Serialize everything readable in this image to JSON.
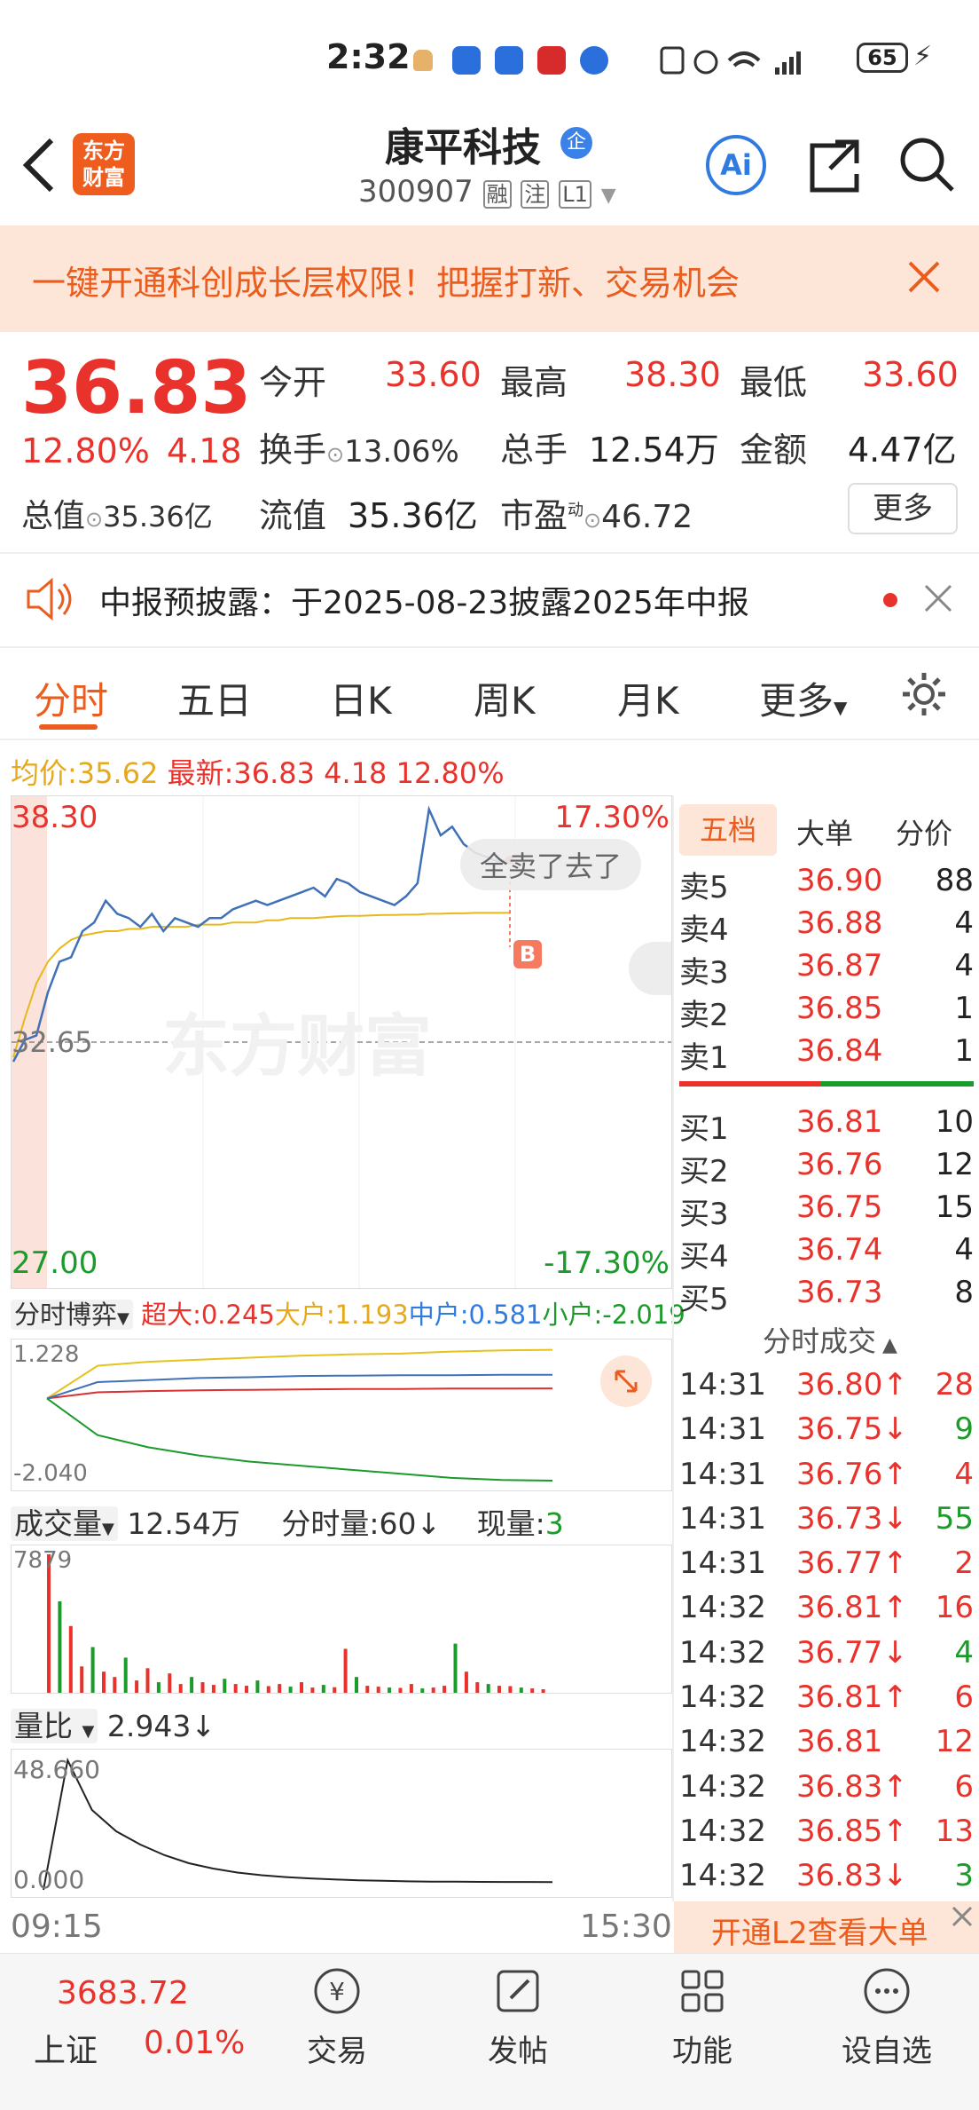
{
  "status_bar": {
    "time": "2:32",
    "battery": "65"
  },
  "header": {
    "logo_line1": "东方",
    "logo_line2": "财富",
    "stock_name": "康平科技",
    "name_badge": "企",
    "code": "300907",
    "tag1": "融",
    "tag2": "注",
    "tag3": "L1",
    "ai_label": "Ai"
  },
  "banner": {
    "text": "一键开通科创成长层权限！把握打新、交易机会"
  },
  "quote": {
    "price": "36.83",
    "change_pct": "12.80%",
    "change": "4.18",
    "open_label": "今开",
    "open": "33.60",
    "high_label": "最高",
    "high": "38.30",
    "low_label": "最低",
    "low": "33.60",
    "turnover_label": "换手",
    "turnover": "13.06%",
    "volume_label": "总手",
    "volume": "12.54万",
    "amount_label": "金额",
    "amount": "4.47亿",
    "mktcap_label": "总值",
    "mktcap": "35.36亿",
    "float_label": "流值",
    "float": "35.36亿",
    "pe_label": "市盈",
    "pe_sup": "动",
    "pe": "46.72",
    "more_button": "更多"
  },
  "notice": {
    "text": "中报预披露：于2025-08-23披露2025年中报"
  },
  "tabs": {
    "t1": "分时",
    "t2": "五日",
    "t3": "日K",
    "t4": "周K",
    "t5": "月K",
    "t6": "更多"
  },
  "chart_header": {
    "avg_label": "均价:",
    "avg": "35.62",
    "latest_label": "最新:",
    "latest": "36.83",
    "change": "4.18",
    "pct": "12.80%"
  },
  "chart_data": [
    {
      "type": "line",
      "name": "intraday",
      "ylim": [
        27.0,
        38.3
      ],
      "y_top_label": "38.30",
      "y_mid_label": "32.65",
      "y_bottom_label": "27.00",
      "pct_top": "17.30%",
      "pct_bottom": "-17.30%",
      "x_start": "09:15",
      "x_end": "15:30",
      "price": [
        32.2,
        32.7,
        32.8,
        33.8,
        34.5,
        34.6,
        35.2,
        35.4,
        35.9,
        35.6,
        35.5,
        35.3,
        35.6,
        35.2,
        35.5,
        35.4,
        35.3,
        35.5,
        35.5,
        35.7,
        35.8,
        35.9,
        35.8,
        35.9,
        36.0,
        36.1,
        36.2,
        36.0,
        36.4,
        36.3,
        36.1,
        36.0,
        35.9,
        35.8,
        36.0,
        36.3,
        38.0,
        37.4,
        37.6,
        37.2,
        37.0,
        36.9,
        36.8,
        36.83
      ],
      "avg": [
        32.3,
        33.2,
        34.0,
        34.5,
        34.8,
        35.0,
        35.1,
        35.15,
        35.2,
        35.2,
        35.25,
        35.25,
        35.3,
        35.3,
        35.3,
        35.3,
        35.35,
        35.35,
        35.35,
        35.4,
        35.4,
        35.4,
        35.45,
        35.45,
        35.5,
        35.5,
        35.5,
        35.52,
        35.54,
        35.55,
        35.55,
        35.56,
        35.57,
        35.57,
        35.58,
        35.58,
        35.6,
        35.6,
        35.61,
        35.61,
        35.62,
        35.62,
        35.62,
        35.62
      ],
      "annotation": "全卖了去了",
      "marker": "B",
      "watermark": "东方财富"
    },
    {
      "type": "line",
      "name": "fund-flow",
      "ymax_label": "1.228",
      "ymin_label": "-2.040",
      "series": [
        {
          "name": "超大",
          "value": "0.245",
          "values": [
            0,
            0.15,
            0.18,
            0.2,
            0.21,
            0.22,
            0.23,
            0.23,
            0.24,
            0.24,
            0.245
          ]
        },
        {
          "name": "大户",
          "value": "1.193",
          "values": [
            0,
            0.8,
            0.9,
            0.95,
            1.0,
            1.05,
            1.08,
            1.1,
            1.15,
            1.18,
            1.193
          ]
        },
        {
          "name": "中户",
          "value": "0.581",
          "values": [
            0,
            0.4,
            0.45,
            0.5,
            0.52,
            0.55,
            0.56,
            0.57,
            0.57,
            0.58,
            0.581
          ]
        },
        {
          "name": "小户",
          "value": "-2.019",
          "values": [
            0,
            -0.9,
            -1.2,
            -1.4,
            -1.55,
            -1.65,
            -1.75,
            -1.85,
            -1.95,
            -2.0,
            -2.019
          ]
        }
      ]
    },
    {
      "type": "bar",
      "name": "volume",
      "ymax_label": "7879",
      "values": [
        7879,
        5200,
        3800,
        1500,
        2600,
        1200,
        900,
        2000,
        700,
        1400,
        600,
        1100,
        500,
        900,
        600,
        450,
        800,
        500,
        400,
        700,
        380,
        500,
        350,
        600,
        300,
        450,
        320,
        2500,
        900,
        400,
        350,
        300,
        280,
        500,
        250,
        300,
        400,
        2800,
        1200,
        600,
        500,
        400,
        380,
        300,
        250,
        200
      ]
    },
    {
      "type": "line",
      "name": "volume-ratio",
      "ymax_label": "48.660",
      "ymin_label": "0.000",
      "values": [
        0,
        48.66,
        30,
        22,
        17,
        13,
        10,
        8,
        6.5,
        5.5,
        4.8,
        4.3,
        3.9,
        3.6,
        3.4,
        3.2,
        3.1,
        3.05,
        3.0,
        2.98,
        2.96,
        2.943
      ]
    }
  ],
  "flow_bar": {
    "label": "分时博弈",
    "chao_label": "超大:",
    "chao": "0.245",
    "da_label": "大户:",
    "da": "1.193",
    "zhong_label": "中户:",
    "zhong": "0.581",
    "xiao_label": "小户:",
    "xiao": "-2.019"
  },
  "vol_bar": {
    "label": "成交量",
    "total": "12.54万",
    "minute_label": "分时量:60↓",
    "now_label": "现量:",
    "now": "3"
  },
  "ratio_bar": {
    "label": "量比",
    "value": "2.943↓"
  },
  "order_tabs": {
    "t1": "五档",
    "t2": "大单",
    "t3": "分价"
  },
  "asks": [
    {
      "label": "卖5",
      "price": "36.90",
      "qty": "88"
    },
    {
      "label": "卖4",
      "price": "36.88",
      "qty": "4"
    },
    {
      "label": "卖3",
      "price": "36.87",
      "qty": "4"
    },
    {
      "label": "卖2",
      "price": "36.85",
      "qty": "1"
    },
    {
      "label": "卖1",
      "price": "36.84",
      "qty": "1"
    }
  ],
  "bids": [
    {
      "label": "买1",
      "price": "36.81",
      "qty": "10"
    },
    {
      "label": "买2",
      "price": "36.76",
      "qty": "12"
    },
    {
      "label": "买3",
      "price": "36.75",
      "qty": "15"
    },
    {
      "label": "买4",
      "price": "36.74",
      "qty": "4"
    },
    {
      "label": "买5",
      "price": "36.73",
      "qty": "8"
    }
  ],
  "ticks_header": "分时成交",
  "ticks": [
    {
      "time": "14:31",
      "price": "36.80↑",
      "qty": "28"
    },
    {
      "time": "14:31",
      "price": "36.75↓",
      "qty": "9"
    },
    {
      "time": "14:31",
      "price": "36.76↑",
      "qty": "4"
    },
    {
      "time": "14:31",
      "price": "36.73↓",
      "qty": "55"
    },
    {
      "time": "14:31",
      "price": "36.77↑",
      "qty": "2"
    },
    {
      "time": "14:32",
      "price": "36.81↑",
      "qty": "16"
    },
    {
      "time": "14:32",
      "price": "36.77↓",
      "qty": "4"
    },
    {
      "time": "14:32",
      "price": "36.81↑",
      "qty": "6"
    },
    {
      "time": "14:32",
      "price": "36.81",
      "qty": "12"
    },
    {
      "time": "14:32",
      "price": "36.83↑",
      "qty": "6"
    },
    {
      "time": "14:32",
      "price": "36.85↑",
      "qty": "13"
    },
    {
      "time": "14:32",
      "price": "36.83↓",
      "qty": "3"
    }
  ],
  "l2_button": "开通L2查看大单",
  "bottom_nav": {
    "index_value": "3683.72",
    "index_name": "上证",
    "index_pct": "0.01%",
    "trade": "交易",
    "post": "发帖",
    "func": "功能",
    "watch": "设自选"
  }
}
